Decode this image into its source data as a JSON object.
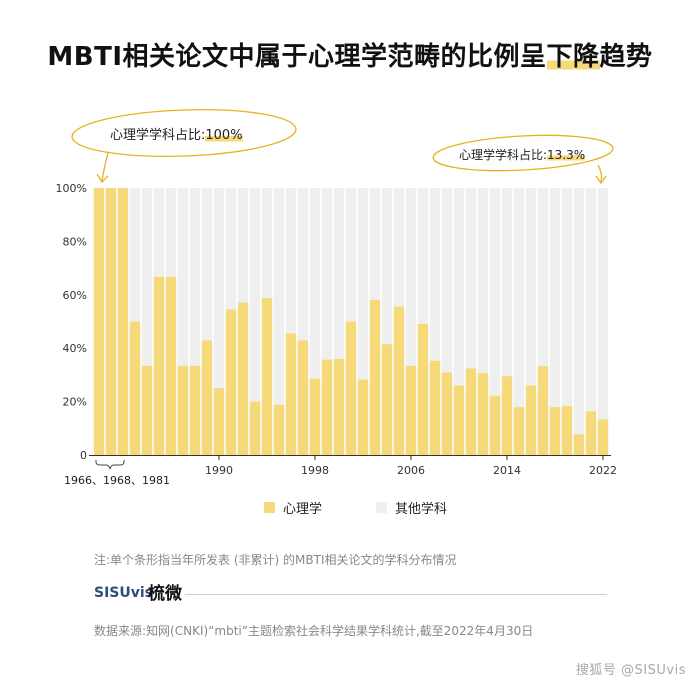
{
  "header": {
    "title_before": "MBTI相关论文中属于心理学范畴的比例呈",
    "title_highlight": "下降",
    "title_after": "趋势"
  },
  "annotations": {
    "left_label": "心理学学科占比:",
    "left_value": "100%",
    "right_label": "心理学学科占比:",
    "right_value": "13.3%"
  },
  "colors": {
    "psychology": "#f6d978",
    "other": "#efefef",
    "accent_line": "#e6b320"
  },
  "legend": {
    "psychology": "心理学",
    "other": "其他学科"
  },
  "footer": {
    "note": "注:单个条形指当年所发表 (非累计) 的MBTI相关论文的学科分布情况",
    "brand": "SISUvis ·",
    "brand_mark": "梳微",
    "source": "数据来源:知网(CNKI)“mbti”主题检索社会科学结果学科统计,截至2022年4月30日",
    "watermark": "搜狐号 @SISUvis"
  },
  "chart_data": {
    "type": "bar",
    "stacked": true,
    "years": [
      1966,
      1968,
      1981,
      1983,
      1984,
      1985,
      1986,
      1987,
      1988,
      1989,
      1990,
      1991,
      1992,
      1993,
      1994,
      1995,
      1996,
      1997,
      1998,
      1999,
      2000,
      2001,
      2002,
      2003,
      2004,
      2005,
      2006,
      2007,
      2008,
      2009,
      2010,
      2011,
      2012,
      2013,
      2014,
      2015,
      2016,
      2017,
      2018,
      2019,
      2020,
      2021,
      2022
    ],
    "series": [
      {
        "name": "心理学",
        "values": [
          100,
          100,
          100,
          50,
          33.3,
          66.7,
          66.7,
          33.3,
          33.3,
          42.9,
          25,
          54.5,
          57.1,
          20,
          58.8,
          18.8,
          45.5,
          42.9,
          28.6,
          35.7,
          36,
          50,
          28.2,
          58,
          41.5,
          55.6,
          33.3,
          49.1,
          35.3,
          30.9,
          26,
          32.4,
          30.6,
          22.2,
          29.5,
          17.9,
          26,
          33.3,
          17.9,
          18.3,
          7.7,
          16.3,
          13.3
        ]
      },
      {
        "name": "其他学科",
        "values": [
          0,
          0,
          0,
          50,
          66.7,
          33.3,
          33.3,
          66.7,
          66.7,
          57.1,
          75,
          45.5,
          42.9,
          80,
          41.2,
          81.2,
          54.5,
          57.1,
          71.4,
          64.3,
          64,
          50,
          71.8,
          42,
          58.5,
          44.4,
          66.7,
          50.9,
          64.7,
          69.1,
          74,
          67.6,
          69.4,
          77.8,
          70.5,
          82.1,
          74,
          66.7,
          82.1,
          81.7,
          92.3,
          83.7,
          86.7
        ]
      }
    ],
    "yticks": [
      "0",
      "20%",
      "40%",
      "60%",
      "80%",
      "100%"
    ],
    "ylim": [
      0,
      100
    ],
    "x_tick_labels": [
      "1990",
      "1998",
      "2006",
      "2014",
      "2022"
    ],
    "x_group_label": "1966、1968、1981"
  }
}
